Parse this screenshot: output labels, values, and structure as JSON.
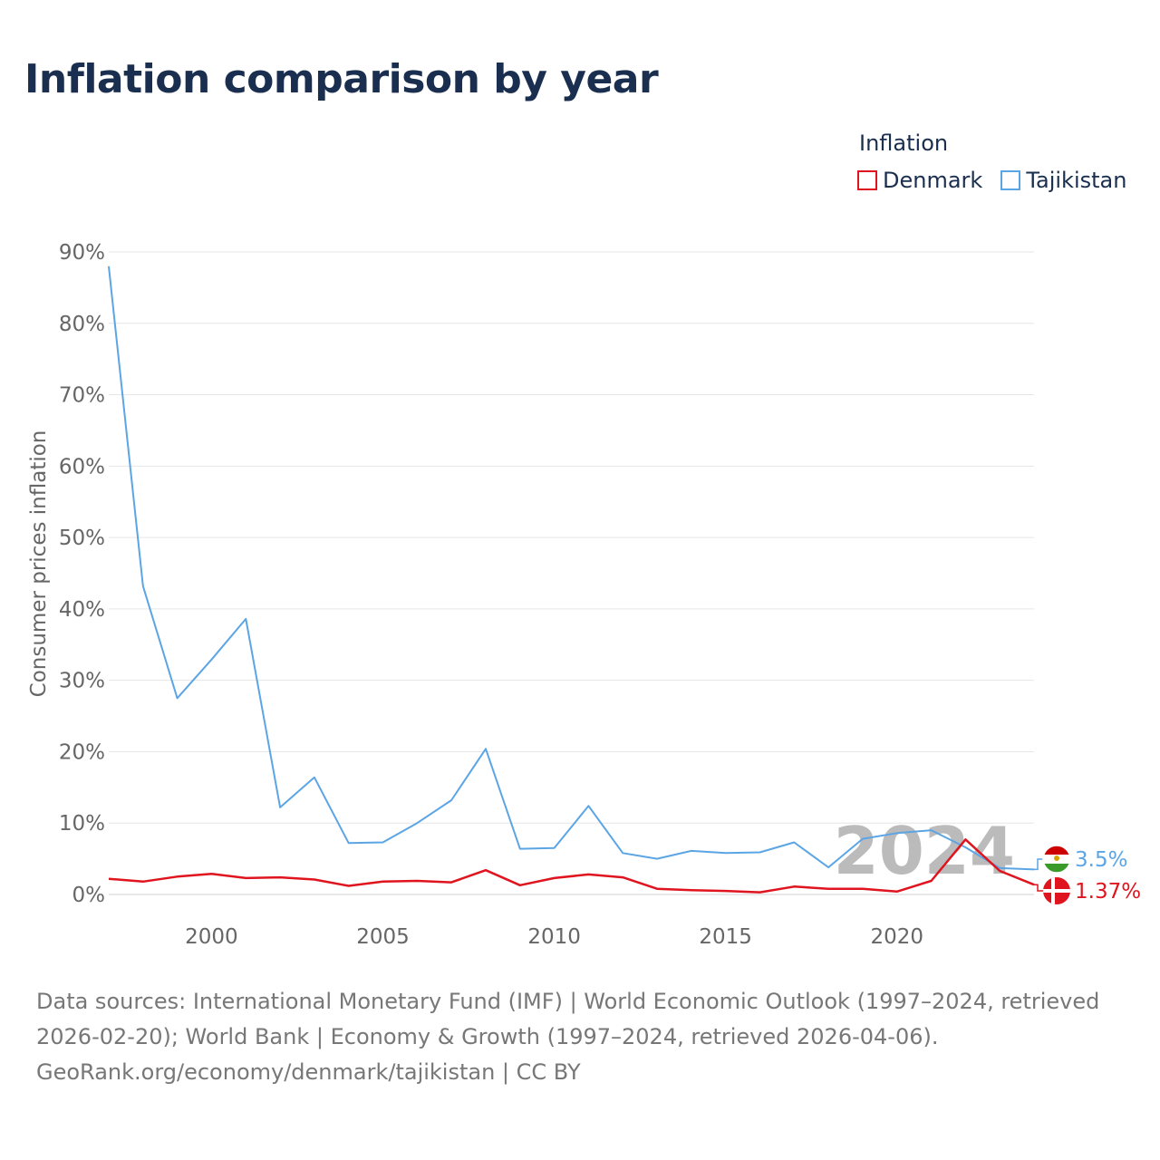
{
  "title": "Inflation comparison by year",
  "legend": {
    "title": "Inflation",
    "items": [
      {
        "name": "Denmark",
        "color": "#e0141e"
      },
      {
        "name": "Tajikistan",
        "color": "#5ba5e5"
      }
    ]
  },
  "chart_data": {
    "type": "line",
    "title": "Inflation comparison by year",
    "xlabel": "",
    "ylabel": "Consumer prices inflation",
    "xlim": [
      1997,
      2024
    ],
    "ylim": [
      0,
      90
    ],
    "x_ticks": [
      2000,
      2005,
      2010,
      2015,
      2020
    ],
    "y_ticks": [
      "0%",
      "10%",
      "20%",
      "30%",
      "40%",
      "50%",
      "60%",
      "70%",
      "80%",
      "90%"
    ],
    "year_watermark": "2024",
    "x": [
      1997,
      1998,
      1999,
      2000,
      2001,
      2002,
      2003,
      2004,
      2005,
      2006,
      2007,
      2008,
      2009,
      2010,
      2011,
      2012,
      2013,
      2014,
      2015,
      2016,
      2017,
      2018,
      2019,
      2020,
      2021,
      2022,
      2023,
      2024
    ],
    "series": [
      {
        "name": "Denmark",
        "color": "#e0141e",
        "end_label": "1.37%",
        "values": [
          2.2,
          1.8,
          2.5,
          2.9,
          2.3,
          2.4,
          2.1,
          1.2,
          1.8,
          1.9,
          1.7,
          3.4,
          1.3,
          2.3,
          2.8,
          2.4,
          0.8,
          0.6,
          0.5,
          0.3,
          1.1,
          0.8,
          0.8,
          0.4,
          1.9,
          7.7,
          3.3,
          1.37
        ]
      },
      {
        "name": "Tajikistan",
        "color": "#5ba5e5",
        "end_label": "3.5%",
        "values": [
          88.0,
          43.2,
          27.5,
          32.9,
          38.6,
          12.2,
          16.4,
          7.2,
          7.3,
          10.0,
          13.2,
          20.4,
          6.4,
          6.5,
          12.4,
          5.8,
          5.0,
          6.1,
          5.8,
          5.9,
          7.3,
          3.8,
          7.8,
          8.6,
          9.0,
          6.6,
          3.7,
          3.5
        ]
      }
    ]
  },
  "footer": {
    "line1": "Data sources: International Monetary Fund (IMF) | World Economic Outlook (1997–2024, retrieved 2026-02-20); World Bank | Economy & Growth (1997–2024, retrieved 2026-04-06).",
    "line2": "GeoRank.org/economy/denmark/tajikistan | CC BY"
  }
}
